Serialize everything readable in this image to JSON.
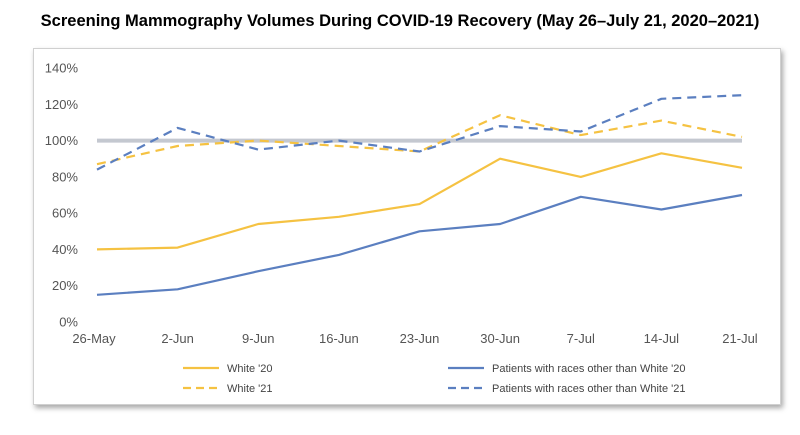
{
  "title": "Screening Mammography Volumes During COVID-19 Recovery (May 26–July 21, 2020–2021)",
  "chart_data": {
    "type": "line",
    "categories": [
      "26-May",
      "2-Jun",
      "9-Jun",
      "16-Jun",
      "23-Jun",
      "30-Jun",
      "7-Jul",
      "14-Jul",
      "21-Jul"
    ],
    "ylim": [
      0,
      140
    ],
    "yticks": [
      0,
      20,
      40,
      60,
      80,
      100,
      120,
      140
    ],
    "ytick_labels": [
      "0%",
      "20%",
      "40%",
      "60%",
      "80%",
      "100%",
      "120%",
      "140%"
    ],
    "reference_line": 100,
    "grid": false,
    "legend_position": "bottom",
    "series": [
      {
        "name": "White '20",
        "color": "#F5C242",
        "dashed": false,
        "values": [
          40,
          41,
          54,
          58,
          65,
          90,
          80,
          93,
          85
        ]
      },
      {
        "name": "Patients with races other than White '20",
        "color": "#5B7FC0",
        "dashed": false,
        "values": [
          15,
          18,
          28,
          37,
          50,
          54,
          69,
          62,
          70
        ]
      },
      {
        "name": "White '21",
        "color": "#F5C242",
        "dashed": true,
        "values": [
          87,
          97,
          100,
          97,
          94,
          114,
          103,
          111,
          102
        ]
      },
      {
        "name": "Patients with races other than White '21",
        "color": "#5B7FC0",
        "dashed": true,
        "values": [
          84,
          107,
          95,
          100,
          94,
          108,
          105,
          123,
          125
        ]
      }
    ]
  }
}
